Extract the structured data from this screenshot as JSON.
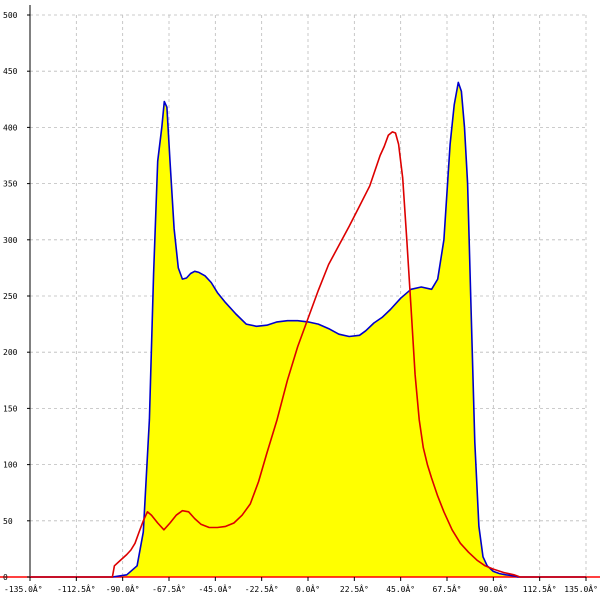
{
  "chart_data": {
    "type": "area",
    "title": "",
    "xlabel": "",
    "ylabel": "",
    "xlim": [
      -135,
      135
    ],
    "ylim": [
      0,
      500
    ],
    "grid": true,
    "x_ticks": [
      "-135.0Â°",
      "-112.5Â°",
      "-90.0Â°",
      "-67.5Â°",
      "-45.0Â°",
      "-22.5Â°",
      "0.0Â°",
      "22.5Â°",
      "45.0Â°",
      "67.5Â°",
      "90.0Â°",
      "112.5Â°",
      "135.0Â°"
    ],
    "y_ticks": [
      "0",
      "50",
      "100",
      "150",
      "200",
      "250",
      "300",
      "350",
      "400",
      "450",
      "500"
    ],
    "colors": {
      "fill": "#ffff00",
      "blue": "#0000cc",
      "red": "#dd0000",
      "grid": "#bbbbbb",
      "axis": "#000000",
      "baseline": "#ff0000"
    },
    "series": [
      {
        "color": "blue",
        "filled": true,
        "x": [
          -135,
          -95,
          -88,
          -83,
          -80,
          -77,
          -75,
          -73,
          -71,
          -69.8,
          -68.5,
          -67,
          -65,
          -63,
          -61,
          -59,
          -57,
          -55,
          -53,
          -50,
          -47,
          -44,
          -40,
          -35,
          -30,
          -25,
          -20,
          -15,
          -10,
          -5,
          0,
          5,
          10,
          15,
          20,
          25,
          28,
          32,
          36,
          40,
          45,
          50,
          55,
          60,
          63,
          66,
          69,
          71,
          73,
          74.5,
          76,
          77.5,
          79,
          81,
          83,
          85,
          87,
          90,
          93,
          96,
          100,
          102,
          135
        ],
        "y": [
          0,
          0,
          2,
          10,
          40,
          140,
          270,
          370,
          400,
          423,
          418,
          370,
          310,
          275,
          265,
          266,
          270,
          272,
          271,
          268,
          262,
          253,
          244,
          234,
          225,
          223,
          224,
          227,
          228,
          228,
          227,
          225,
          221,
          216,
          214,
          215,
          219,
          226,
          231,
          238,
          248,
          256,
          258,
          256,
          265,
          300,
          385,
          420,
          440,
          432,
          400,
          350,
          250,
          120,
          45,
          18,
          10,
          5,
          3,
          2,
          1,
          0,
          0
        ]
      },
      {
        "color": "red",
        "filled": false,
        "x": [
          -135,
          -95,
          -94,
          -91,
          -88,
          -86,
          -84,
          -82,
          -80,
          -78,
          -76,
          -73,
          -70,
          -67,
          -64,
          -61,
          -58,
          -55,
          -52,
          -48,
          -44,
          -40,
          -36,
          -32,
          -28,
          -24,
          -20,
          -15,
          -10,
          -5,
          0,
          5,
          10,
          15,
          20,
          25,
          30,
          35,
          37,
          39,
          41,
          42.5,
          44,
          46,
          48,
          50,
          52,
          54,
          56,
          58,
          60,
          63,
          66,
          70,
          74,
          78,
          82,
          86,
          90,
          95,
          100,
          103,
          135
        ],
        "y": [
          0,
          0,
          10,
          15,
          20,
          24,
          30,
          40,
          50,
          58,
          55,
          48,
          42,
          48,
          55,
          59,
          58,
          52,
          47,
          44,
          44,
          45,
          48,
          55,
          65,
          85,
          110,
          140,
          175,
          205,
          230,
          255,
          278,
          295,
          312,
          330,
          348,
          375,
          383,
          393,
          396,
          395,
          385,
          355,
          300,
          240,
          180,
          140,
          115,
          100,
          88,
          72,
          58,
          42,
          30,
          22,
          15,
          10,
          7,
          4,
          2,
          0,
          0
        ]
      }
    ]
  }
}
